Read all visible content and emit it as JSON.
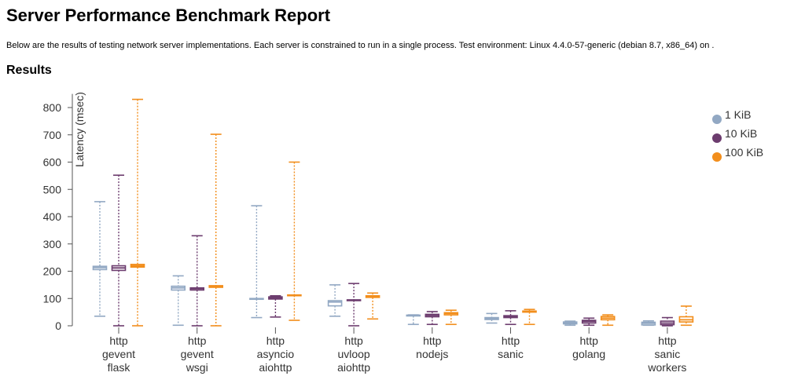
{
  "page": {
    "title": "Server Performance Benchmark Report",
    "description": "Below are the results of testing network server implementations. Each server is constrained to run in a single process. Test environment: Linux 4.4.0-57-generic (debian 8.7, x86_64) on .",
    "section_heading": "Results"
  },
  "chart_data": {
    "type": "boxplot",
    "title": "",
    "xlabel": "",
    "ylabel": "Latency (msec)",
    "ylim": [
      0,
      850
    ],
    "yticks": [
      0,
      100,
      200,
      300,
      400,
      500,
      600,
      700,
      800
    ],
    "legend_position": "top-right",
    "categories": [
      [
        "http",
        "gevent",
        "flask"
      ],
      [
        "http",
        "gevent",
        "wsgi"
      ],
      [
        "http",
        "asyncio",
        "aiohttp"
      ],
      [
        "http",
        "uvloop",
        "aiohttp"
      ],
      [
        "http",
        "nodejs"
      ],
      [
        "http",
        "sanic"
      ],
      [
        "http",
        "golang"
      ],
      [
        "http",
        "sanic",
        "workers"
      ]
    ],
    "series": [
      {
        "name": "1 KiB",
        "color": "#92a8c3",
        "boxes": [
          {
            "min": 35,
            "q1": 206,
            "median": 213,
            "q3": 218,
            "max": 455
          },
          {
            "min": 2,
            "q1": 131,
            "median": 139,
            "q3": 145,
            "max": 183
          },
          {
            "min": 30,
            "q1": 98,
            "median": 99,
            "q3": 100,
            "max": 440
          },
          {
            "min": 35,
            "q1": 73,
            "median": 87,
            "q3": 92,
            "max": 150
          },
          {
            "min": 5,
            "q1": 36,
            "median": 38,
            "q3": 39,
            "max": 40
          },
          {
            "min": 10,
            "q1": 23,
            "median": 27,
            "q3": 30,
            "max": 45
          },
          {
            "min": 2,
            "q1": 7,
            "median": 10,
            "q3": 14,
            "max": 17
          },
          {
            "min": 2,
            "q1": 3,
            "median": 9,
            "q3": 13,
            "max": 18
          }
        ]
      },
      {
        "name": "10 KiB",
        "color": "#6c3c6e",
        "boxes": [
          {
            "min": 0,
            "q1": 203,
            "median": 212,
            "q3": 220,
            "max": 552
          },
          {
            "min": 0,
            "q1": 131,
            "median": 136,
            "q3": 139,
            "max": 330
          },
          {
            "min": 32,
            "q1": 98,
            "median": 102,
            "q3": 106,
            "max": 110
          },
          {
            "min": 0,
            "q1": 93,
            "median": 94,
            "q3": 95,
            "max": 155
          },
          {
            "min": 5,
            "q1": 33,
            "median": 38,
            "q3": 42,
            "max": 52
          },
          {
            "min": 5,
            "q1": 30,
            "median": 33,
            "q3": 37,
            "max": 55
          },
          {
            "min": 2,
            "q1": 10,
            "median": 16,
            "q3": 20,
            "max": 28
          },
          {
            "min": 0,
            "q1": 4,
            "median": 10,
            "q3": 17,
            "max": 30
          }
        ]
      },
      {
        "name": "100 KiB",
        "color": "#f28e1c",
        "boxes": [
          {
            "min": 0,
            "q1": 215,
            "median": 220,
            "q3": 225,
            "max": 830
          },
          {
            "min": 0,
            "q1": 141,
            "median": 144,
            "q3": 147,
            "max": 702
          },
          {
            "min": 20,
            "q1": 111,
            "median": 112,
            "q3": 113,
            "max": 600
          },
          {
            "min": 25,
            "q1": 104,
            "median": 107,
            "q3": 110,
            "max": 120
          },
          {
            "min": 5,
            "q1": 40,
            "median": 45,
            "q3": 48,
            "max": 57
          },
          {
            "min": 5,
            "q1": 50,
            "median": 52,
            "q3": 54,
            "max": 60
          },
          {
            "min": 2,
            "q1": 22,
            "median": 28,
            "q3": 34,
            "max": 40
          },
          {
            "min": 2,
            "q1": 14,
            "median": 22,
            "q3": 33,
            "max": 72
          }
        ]
      }
    ]
  }
}
